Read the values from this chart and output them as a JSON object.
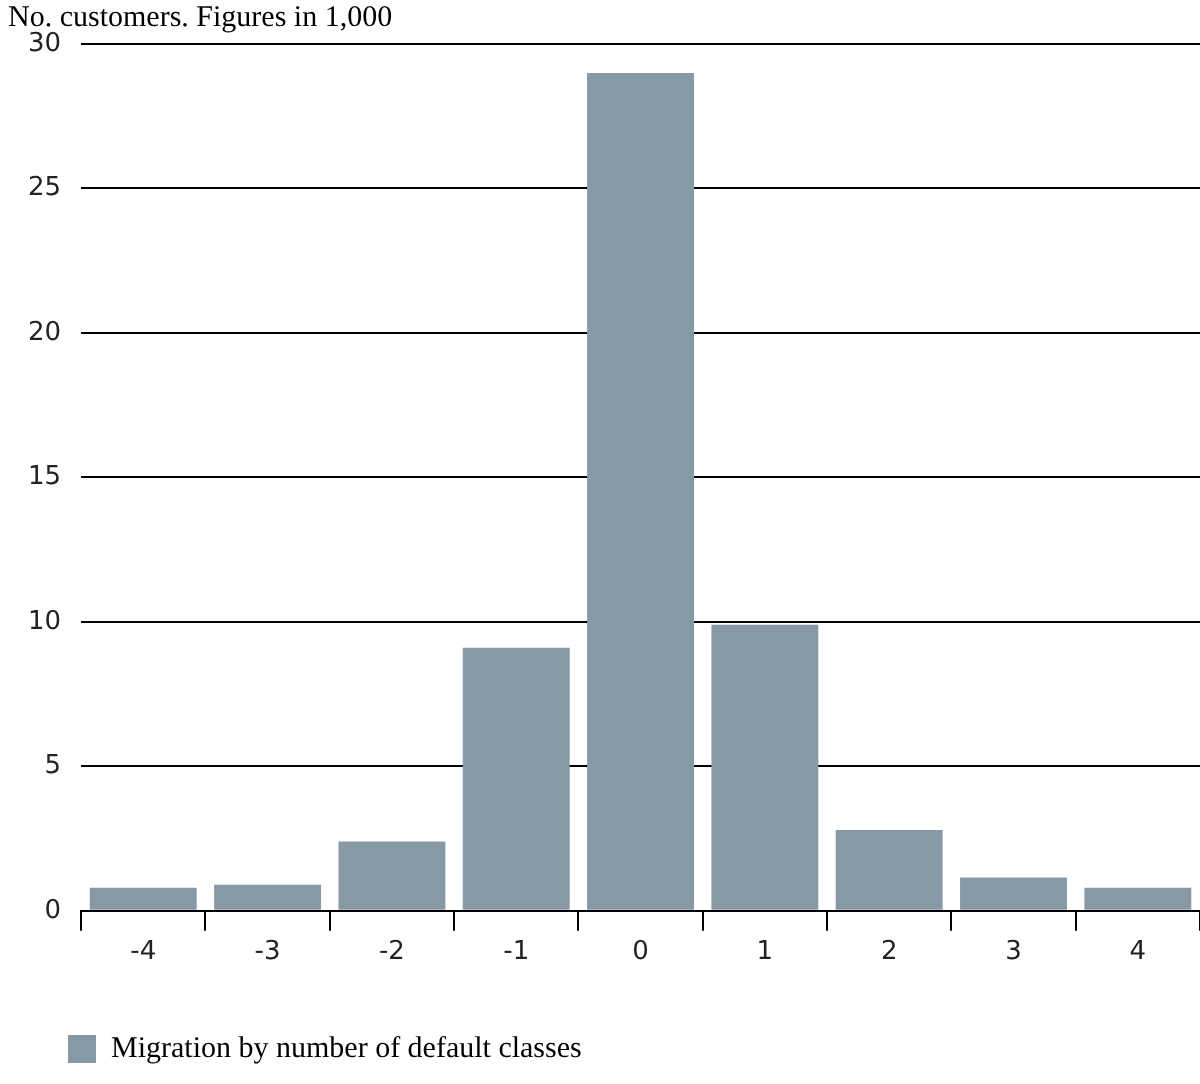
{
  "chart_data": {
    "type": "bar",
    "title": "No. customers. Figures in 1,000",
    "categories": [
      "-4",
      "-3",
      "-2",
      "-1",
      "0",
      "1",
      "2",
      "3",
      "4"
    ],
    "series": [
      {
        "name": "Migration by number of default classes",
        "color": "#8899a6",
        "values": [
          0.8,
          0.9,
          2.4,
          9.1,
          29.0,
          9.9,
          2.8,
          1.15,
          0.8
        ]
      }
    ],
    "ylim": [
      0,
      30
    ],
    "yticks": [
      0,
      5,
      10,
      15,
      20,
      25,
      30
    ],
    "grid": "y",
    "legend": "bottom left"
  }
}
